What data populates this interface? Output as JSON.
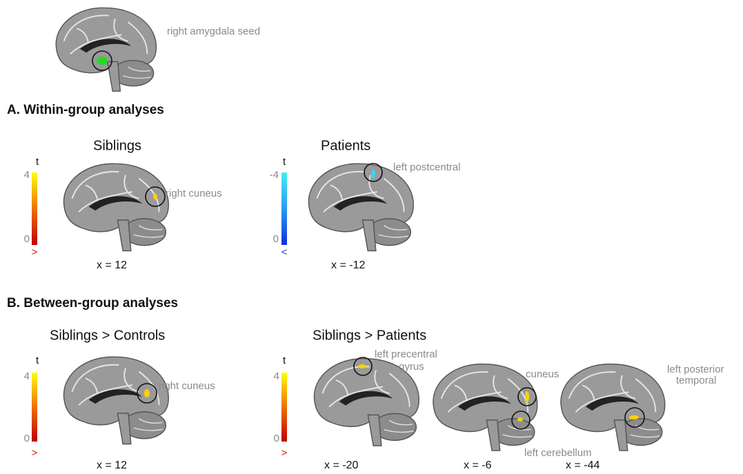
{
  "seed": {
    "label": "right amygdala seed"
  },
  "sections": [
    {
      "title": "A. Within-group analyses",
      "panels": [
        {
          "title": "Siblings",
          "colorbar": {
            "label": "t",
            "max": "4",
            "min": "0",
            "sign": ">"
          },
          "slices": [
            {
              "coord": "x = 12",
              "labels": [
                "right cuneus"
              ]
            }
          ]
        },
        {
          "title": "Patients",
          "colorbar": {
            "label": "t",
            "max": "-4",
            "min": "0",
            "sign": "<"
          },
          "slices": [
            {
              "coord": "x = -12",
              "labels": [
                "left postcentral"
              ]
            }
          ]
        }
      ]
    },
    {
      "title": "B. Between-group analyses",
      "panels": [
        {
          "title": "Siblings > Controls",
          "colorbar": {
            "label": "t",
            "max": "4",
            "min": "0",
            "sign": ">"
          },
          "slices": [
            {
              "coord": "x = 12",
              "labels": [
                "right cuneus"
              ]
            }
          ]
        },
        {
          "title": "Siblings > Patients",
          "colorbar": {
            "label": "t",
            "max": "4",
            "min": "0",
            "sign": ">"
          },
          "slices": [
            {
              "coord": "x = -20",
              "labels": [
                "left precentral",
                "gyrus"
              ]
            },
            {
              "coord": "x = -6",
              "labels": [
                "cuneus",
                "left cerebellum"
              ]
            },
            {
              "coord": "x = -44",
              "labels": [
                "left posterior",
                "temporal"
              ]
            }
          ]
        }
      ]
    }
  ]
}
